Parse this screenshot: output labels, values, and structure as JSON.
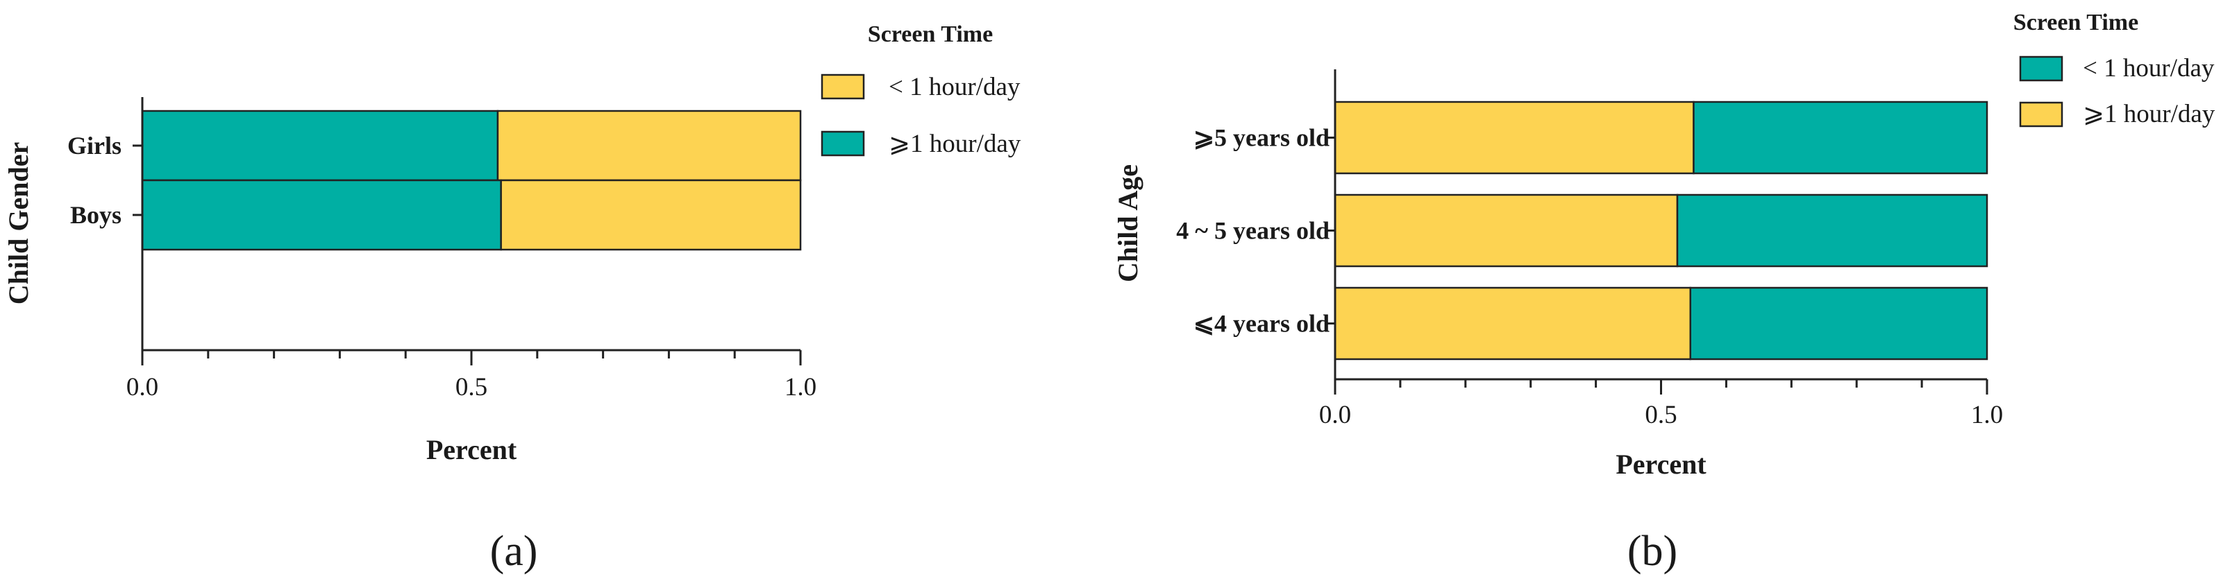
{
  "colors": {
    "under_1h": "#FDD352",
    "over_1h": "#00AFA3",
    "axis": "#222222",
    "bar_stroke": "#222222"
  },
  "chart_data": [
    {
      "type": "bar",
      "orientation": "horizontal",
      "stacked": true,
      "panel_label": "(a)",
      "xlabel": "Percent",
      "ylabel": "Child Gender",
      "xlim": [
        0,
        1
      ],
      "x_ticks": [
        "0.0",
        "0.5",
        "1.0"
      ],
      "categories": [
        "Girls",
        "Boys"
      ],
      "stack_order": [
        "≥1",
        "<1"
      ],
      "series": [
        {
          "name": "≥1",
          "label": "⩾1 hour/day",
          "color_key": "over_1h",
          "values": [
            0.54,
            0.545
          ]
        },
        {
          "name": "<1",
          "label": "< 1 hour/day",
          "color_key": "under_1h",
          "values": [
            0.46,
            0.455
          ]
        }
      ],
      "legend": {
        "title": "Screen Time",
        "placement": "top-right",
        "order": [
          "<1",
          "≥1"
        ]
      }
    },
    {
      "type": "bar",
      "orientation": "horizontal",
      "stacked": true,
      "panel_label": "(b)",
      "xlabel": "Percent",
      "ylabel": "Child Age",
      "xlim": [
        0,
        1
      ],
      "x_ticks": [
        "0.0",
        "0.5",
        "1.0"
      ],
      "categories": [
        "⩾5 years old",
        "4 ~ 5 years old",
        "⩽4 years old"
      ],
      "stack_order": [
        "≥1",
        "<1"
      ],
      "series": [
        {
          "name": "≥1",
          "label": "⩾1 hour/day",
          "color_key": "under_1h",
          "values": [
            0.55,
            0.525,
            0.545
          ]
        },
        {
          "name": "<1",
          "label": "< 1 hour/day",
          "color_key": "over_1h",
          "values": [
            0.45,
            0.475,
            0.455
          ]
        }
      ],
      "legend": {
        "title": "Screen Time",
        "placement": "top-right",
        "order": [
          "<1",
          "≥1"
        ]
      }
    }
  ]
}
